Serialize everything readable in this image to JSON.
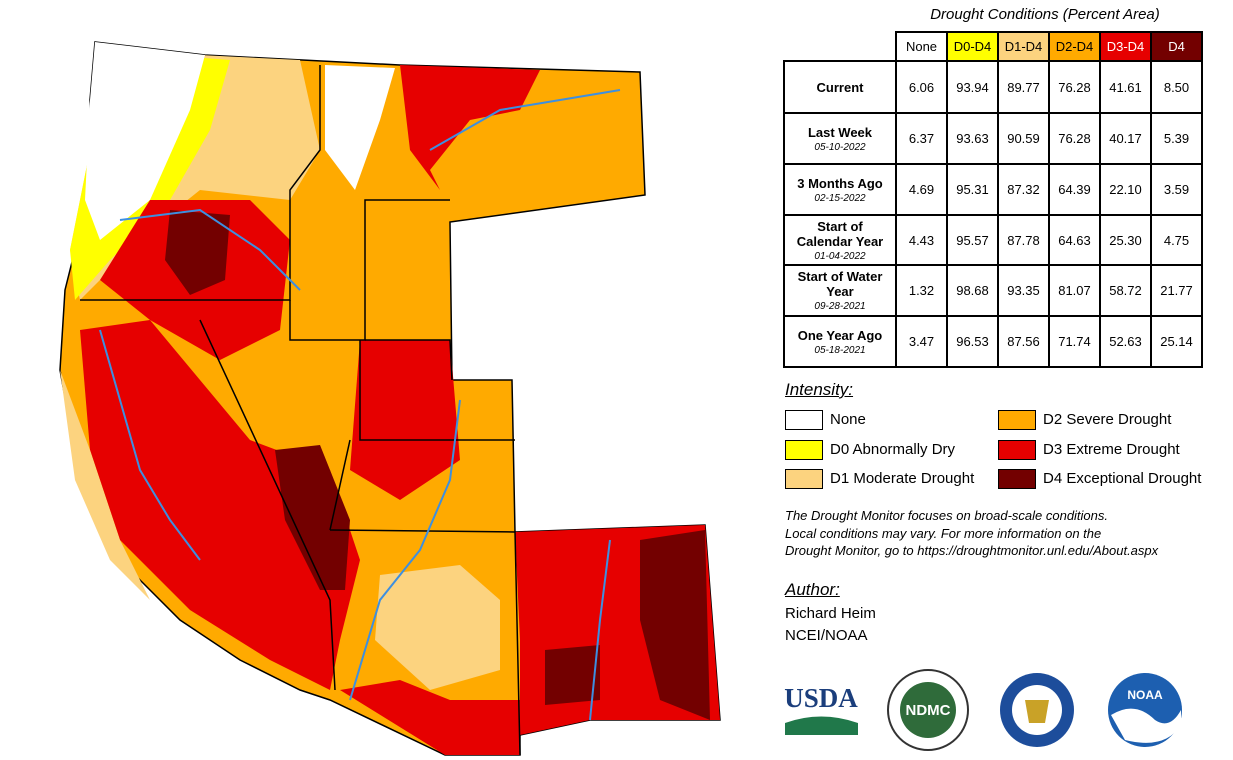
{
  "table": {
    "title": "Drought Conditions (Percent Area)",
    "columns": [
      {
        "label": "None",
        "color": "#ffffff",
        "text": "#000000"
      },
      {
        "label": "D0-D4",
        "color": "#ffff00",
        "text": "#000000"
      },
      {
        "label": "D1-D4",
        "color": "#fcd37f",
        "text": "#000000"
      },
      {
        "label": "D2-D4",
        "color": "#ffaa00",
        "text": "#000000"
      },
      {
        "label": "D3-D4",
        "color": "#e60000",
        "text": "#ffffff"
      },
      {
        "label": "D4",
        "color": "#730000",
        "text": "#ffffff"
      }
    ],
    "rows": [
      {
        "label": "Current",
        "cells": [
          "6.06",
          "93.94",
          "89.77",
          "76.28",
          "41.61",
          "8.50"
        ]
      },
      {
        "label": "Last Week",
        "date": "05-10-2022",
        "cells": [
          "6.37",
          "93.63",
          "90.59",
          "76.28",
          "40.17",
          "5.39"
        ]
      },
      {
        "label": "3 Months Ago",
        "date": "02-15-2022",
        "cells": [
          "4.69",
          "95.31",
          "87.32",
          "64.39",
          "22.10",
          "3.59"
        ]
      },
      {
        "label": "Start of Calendar Year",
        "date": "01-04-2022",
        "cells": [
          "4.43",
          "95.57",
          "87.78",
          "64.63",
          "25.30",
          "4.75"
        ]
      },
      {
        "label": "Start of Water Year",
        "date": "09-28-2021",
        "cells": [
          "1.32",
          "98.68",
          "93.35",
          "81.07",
          "58.72",
          "21.77"
        ]
      },
      {
        "label": "One Year Ago",
        "date": "05-18-2021",
        "cells": [
          "3.47",
          "96.53",
          "87.56",
          "71.74",
          "52.63",
          "25.14"
        ]
      }
    ]
  },
  "legend": {
    "title": "Intensity:",
    "items": [
      {
        "label": "None",
        "color": "#ffffff"
      },
      {
        "label": "D0 Abnormally Dry",
        "color": "#ffff00"
      },
      {
        "label": "D1 Moderate Drought",
        "color": "#fcd37f"
      },
      {
        "label": "D2 Severe Drought",
        "color": "#ffaa00"
      },
      {
        "label": "D3 Extreme Drought",
        "color": "#e60000"
      },
      {
        "label": "D4 Exceptional Drought",
        "color": "#730000"
      }
    ]
  },
  "note": [
    "The Drought Monitor focuses on broad-scale conditions.",
    "Local conditions may vary. For more information on the",
    "Drought Monitor, go to https://droughtmonitor.unl.edu/About.aspx"
  ],
  "author": {
    "title": "Author:",
    "name": "Richard Heim",
    "org": "NCEI/NOAA"
  },
  "logos": {
    "usda": "USDA",
    "ndmc": "NDMC",
    "noaa": "NOAA"
  }
}
